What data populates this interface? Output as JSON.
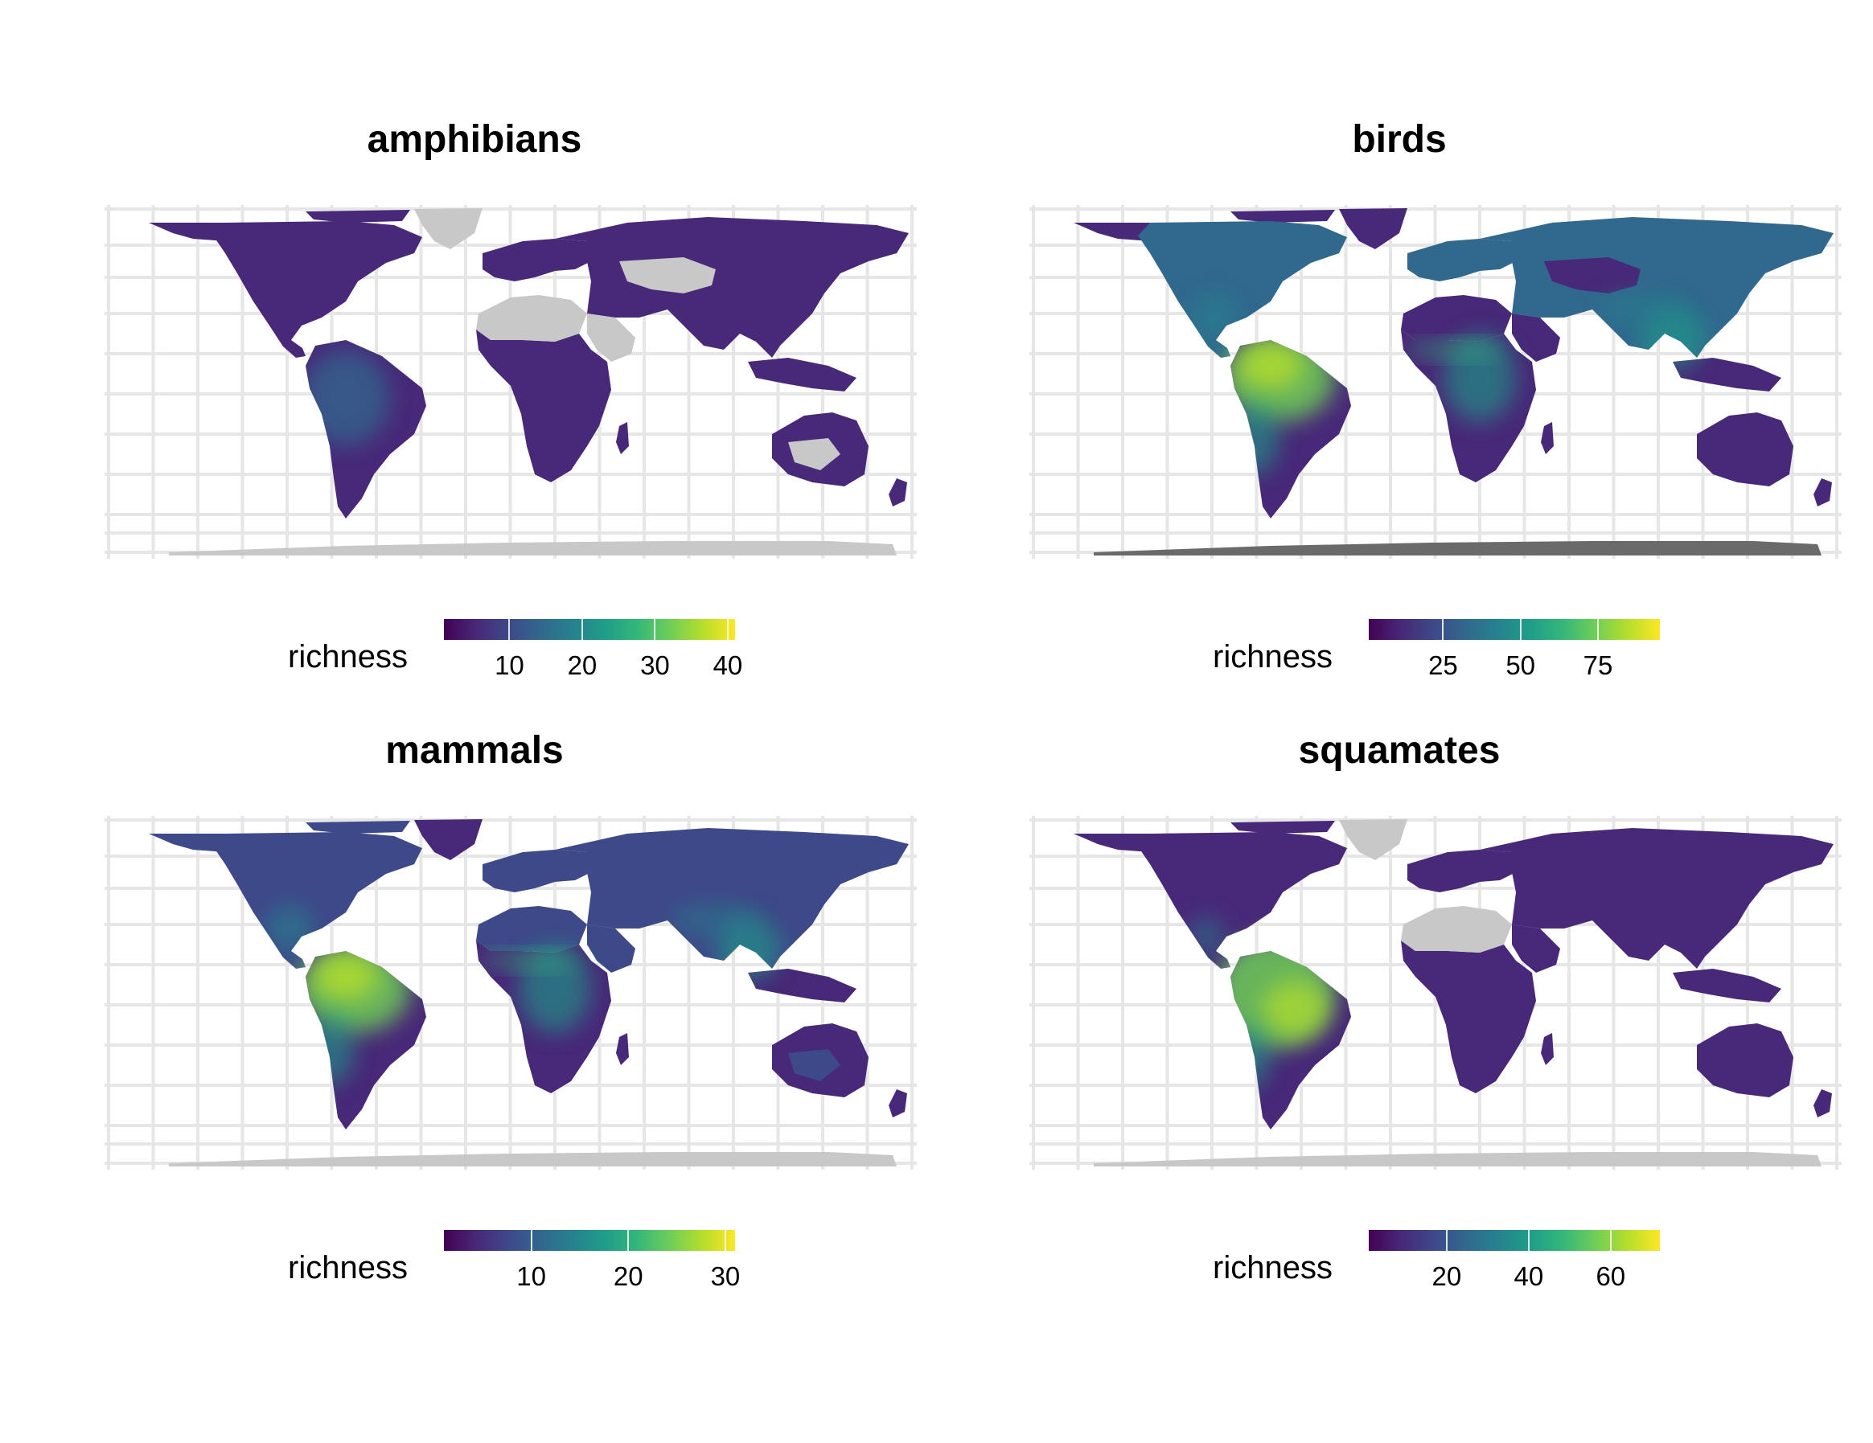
{
  "colors": {
    "land_nodata": "#c8c8c8",
    "antarctica_birds": "#6a6a6a",
    "grid": "#e6e6e6",
    "viridis": [
      "#440154",
      "#482878",
      "#3e4989",
      "#31688e",
      "#26828e",
      "#1f9e89",
      "#35b779",
      "#6ece58",
      "#b5de2b",
      "#fde725"
    ]
  },
  "panels": [
    {
      "title": "amphibians",
      "legend": {
        "title": "richness",
        "min": 1,
        "max": 41,
        "ticks": [
          "10",
          "20",
          "30",
          "40"
        ],
        "tick_values": [
          10,
          20,
          30,
          40
        ]
      },
      "hotspot": "neotropics-moderate",
      "nodata_regions": [
        "north-africa",
        "arabia",
        "central-asia",
        "greenland",
        "antarctica",
        "central-australia"
      ]
    },
    {
      "title": "birds",
      "legend": {
        "title": "richness",
        "min": 1,
        "max": 95,
        "ticks": [
          "25",
          "50",
          "75"
        ],
        "tick_values": [
          25,
          50,
          75
        ]
      },
      "hotspot": "amazonia-andes",
      "nodata_regions": []
    },
    {
      "title": "mammals",
      "legend": {
        "title": "richness",
        "min": 1,
        "max": 31,
        "ticks": [
          "10",
          "20",
          "30"
        ],
        "tick_values": [
          10,
          20,
          30
        ]
      },
      "hotspot": "amazonia-andes",
      "nodata_regions": [
        "antarctica"
      ]
    },
    {
      "title": "squamates",
      "legend": {
        "title": "richness",
        "min": 1,
        "max": 72,
        "ticks": [
          "20",
          "40",
          "60"
        ],
        "tick_values": [
          20,
          40,
          60
        ]
      },
      "hotspot": "amazonia",
      "nodata_regions": [
        "greenland",
        "north-africa",
        "arctic",
        "antarctica"
      ]
    }
  ]
}
